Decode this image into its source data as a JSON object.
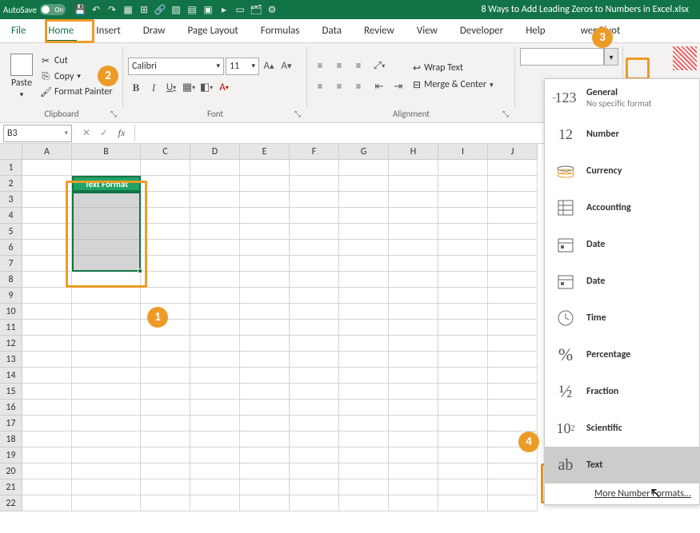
{
  "titlebar": {
    "autosave_label": "AutoSave",
    "autosave_state": "On",
    "workbook_name": "8 Ways to Add Leading Zeros to Numbers in Excel.xlsx"
  },
  "tabs": {
    "file": "File",
    "home": "Home",
    "insert": "Insert",
    "draw": "Draw",
    "page_layout": "Page Layout",
    "formulas": "Formulas",
    "data": "Data",
    "review": "Review",
    "view": "View",
    "developer": "Developer",
    "help": "Help",
    "power_pivot": "wer Pivot"
  },
  "clipboard": {
    "paste": "Paste",
    "cut": "Cut",
    "copy": "Copy",
    "format_painter": "Format Painter",
    "group_label": "Clipboard"
  },
  "font": {
    "name": "Calibri",
    "size": "11",
    "group_label": "Font"
  },
  "alignment": {
    "wrap_text": "Wrap Text",
    "merge_center": "Merge & Center",
    "group_label": "Alignment"
  },
  "formula_bar": {
    "name_box": "B3",
    "formula": ""
  },
  "columns": [
    "A",
    "B",
    "C",
    "D",
    "E",
    "F",
    "G",
    "H",
    "I",
    "J"
  ],
  "rows": [
    "1",
    "2",
    "3",
    "4",
    "5",
    "6",
    "7",
    "8",
    "9",
    "10",
    "11",
    "12",
    "13",
    "14",
    "15",
    "16",
    "17",
    "18",
    "19",
    "20",
    "21",
    "22"
  ],
  "cell_b2": "Text Format",
  "number_formats": {
    "general": {
      "name": "General",
      "sub": "No specific format",
      "icon": "123"
    },
    "number": {
      "name": "Number",
      "icon": "12"
    },
    "currency": {
      "name": "Currency"
    },
    "accounting": {
      "name": "Accounting"
    },
    "date1": {
      "name": "Date"
    },
    "date2": {
      "name": "Date"
    },
    "time": {
      "name": "Time"
    },
    "percentage": {
      "name": "Percentage",
      "icon": "%"
    },
    "fraction": {
      "name": "Fraction",
      "icon": "½"
    },
    "scientific": {
      "name": "Scientific",
      "icon": "10²"
    },
    "text": {
      "name": "Text",
      "icon": "ab"
    },
    "more": "More Number Formats..."
  },
  "callouts": {
    "c1": "1",
    "c2": "2",
    "c3": "3",
    "c4": "4"
  },
  "colors": {
    "callout": "#ed9b27",
    "excel_green": "#127347",
    "sel_fill": "#21a366"
  },
  "selection": {
    "header_cell": "B2",
    "range": "B3:B7"
  }
}
